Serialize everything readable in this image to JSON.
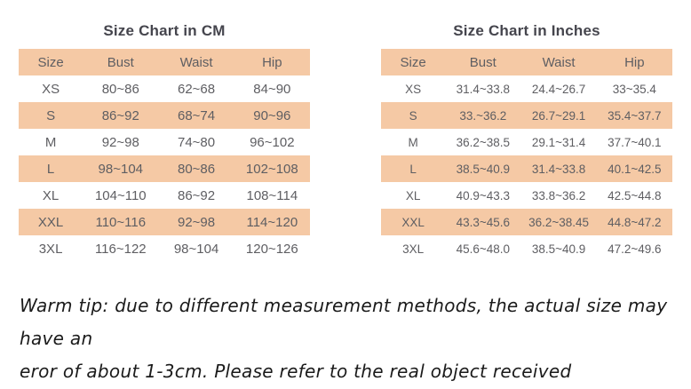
{
  "colors": {
    "band": "#f5c9a5",
    "cell_text": "#5e5e62",
    "title_text": "#45454d",
    "tip_text": "#1b1b1b",
    "background": "#ffffff"
  },
  "tables": [
    {
      "title": "Size Chart in CM",
      "headers": [
        "Size",
        "Bust",
        "Waist",
        "Hip"
      ],
      "rows": [
        [
          "XS",
          "80~86",
          "62~68",
          "84~90"
        ],
        [
          "S",
          "86~92",
          "68~74",
          "90~96"
        ],
        [
          "M",
          "92~98",
          "74~80",
          "96~102"
        ],
        [
          "L",
          "98~104",
          "80~86",
          "102~108"
        ],
        [
          "XL",
          "104~110",
          "86~92",
          "108~114"
        ],
        [
          "XXL",
          "110~116",
          "92~98",
          "114~120"
        ],
        [
          "3XL",
          "116~122",
          "98~104",
          "120~126"
        ]
      ]
    },
    {
      "title": "Size Chart in Inches",
      "headers": [
        "Size",
        "Bust",
        "Waist",
        "Hip"
      ],
      "rows": [
        [
          "XS",
          "31.4~33.8",
          "24.4~26.7",
          "33~35.4"
        ],
        [
          "S",
          "33.~36.2",
          "26.7~29.1",
          "35.4~37.7"
        ],
        [
          "M",
          "36.2~38.5",
          "29.1~31.4",
          "37.7~40.1"
        ],
        [
          "L",
          "38.5~40.9",
          "31.4~33.8",
          "40.1~42.5"
        ],
        [
          "XL",
          "40.9~43.3",
          "33.8~36.2",
          "42.5~44.8"
        ],
        [
          "XXL",
          "43.3~45.6",
          "36.2~38.45",
          "44.8~47.2"
        ],
        [
          "3XL",
          "45.6~48.0",
          "38.5~40.9",
          "47.2~49.6"
        ]
      ]
    }
  ],
  "tip": {
    "lines": [
      "Warm tip: due to different measurement methods, the actual size may have an",
      "eror of about 1-3cm. Please refer to the real object received"
    ]
  }
}
